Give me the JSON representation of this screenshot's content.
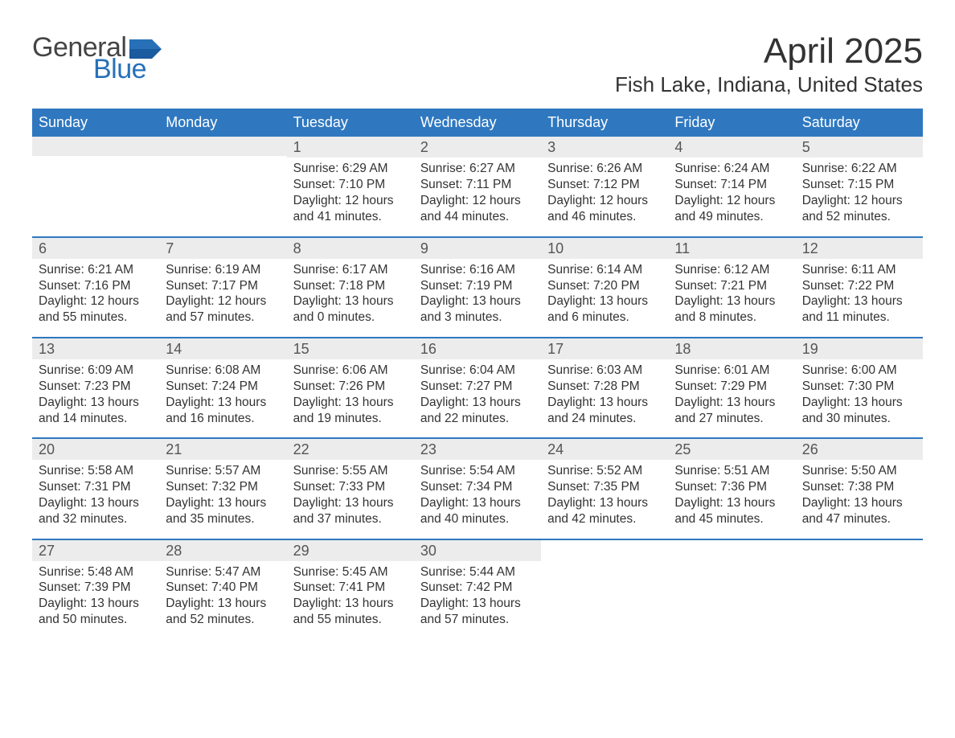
{
  "logo": {
    "general": "General",
    "blue": "Blue",
    "flag_color": "#2770b8"
  },
  "title": "April 2025",
  "location": "Fish Lake, Indiana, United States",
  "colors": {
    "header_bg": "#2f78c0",
    "header_text": "#ffffff",
    "daynum_bg": "#ececec",
    "text": "#333333",
    "week_divider": "#2f78c0",
    "logo_blue": "#2770b8"
  },
  "day_names": [
    "Sunday",
    "Monday",
    "Tuesday",
    "Wednesday",
    "Thursday",
    "Friday",
    "Saturday"
  ],
  "weeks": [
    [
      {
        "blank": true
      },
      {
        "blank": true
      },
      {
        "num": "1",
        "sunrise": "6:29 AM",
        "sunset": "7:10 PM",
        "daylight": "12 hours and 41 minutes."
      },
      {
        "num": "2",
        "sunrise": "6:27 AM",
        "sunset": "7:11 PM",
        "daylight": "12 hours and 44 minutes."
      },
      {
        "num": "3",
        "sunrise": "6:26 AM",
        "sunset": "7:12 PM",
        "daylight": "12 hours and 46 minutes."
      },
      {
        "num": "4",
        "sunrise": "6:24 AM",
        "sunset": "7:14 PM",
        "daylight": "12 hours and 49 minutes."
      },
      {
        "num": "5",
        "sunrise": "6:22 AM",
        "sunset": "7:15 PM",
        "daylight": "12 hours and 52 minutes."
      }
    ],
    [
      {
        "num": "6",
        "sunrise": "6:21 AM",
        "sunset": "7:16 PM",
        "daylight": "12 hours and 55 minutes."
      },
      {
        "num": "7",
        "sunrise": "6:19 AM",
        "sunset": "7:17 PM",
        "daylight": "12 hours and 57 minutes."
      },
      {
        "num": "8",
        "sunrise": "6:17 AM",
        "sunset": "7:18 PM",
        "daylight": "13 hours and 0 minutes."
      },
      {
        "num": "9",
        "sunrise": "6:16 AM",
        "sunset": "7:19 PM",
        "daylight": "13 hours and 3 minutes."
      },
      {
        "num": "10",
        "sunrise": "6:14 AM",
        "sunset": "7:20 PM",
        "daylight": "13 hours and 6 minutes."
      },
      {
        "num": "11",
        "sunrise": "6:12 AM",
        "sunset": "7:21 PM",
        "daylight": "13 hours and 8 minutes."
      },
      {
        "num": "12",
        "sunrise": "6:11 AM",
        "sunset": "7:22 PM",
        "daylight": "13 hours and 11 minutes."
      }
    ],
    [
      {
        "num": "13",
        "sunrise": "6:09 AM",
        "sunset": "7:23 PM",
        "daylight": "13 hours and 14 minutes."
      },
      {
        "num": "14",
        "sunrise": "6:08 AM",
        "sunset": "7:24 PM",
        "daylight": "13 hours and 16 minutes."
      },
      {
        "num": "15",
        "sunrise": "6:06 AM",
        "sunset": "7:26 PM",
        "daylight": "13 hours and 19 minutes."
      },
      {
        "num": "16",
        "sunrise": "6:04 AM",
        "sunset": "7:27 PM",
        "daylight": "13 hours and 22 minutes."
      },
      {
        "num": "17",
        "sunrise": "6:03 AM",
        "sunset": "7:28 PM",
        "daylight": "13 hours and 24 minutes."
      },
      {
        "num": "18",
        "sunrise": "6:01 AM",
        "sunset": "7:29 PM",
        "daylight": "13 hours and 27 minutes."
      },
      {
        "num": "19",
        "sunrise": "6:00 AM",
        "sunset": "7:30 PM",
        "daylight": "13 hours and 30 minutes."
      }
    ],
    [
      {
        "num": "20",
        "sunrise": "5:58 AM",
        "sunset": "7:31 PM",
        "daylight": "13 hours and 32 minutes."
      },
      {
        "num": "21",
        "sunrise": "5:57 AM",
        "sunset": "7:32 PM",
        "daylight": "13 hours and 35 minutes."
      },
      {
        "num": "22",
        "sunrise": "5:55 AM",
        "sunset": "7:33 PM",
        "daylight": "13 hours and 37 minutes."
      },
      {
        "num": "23",
        "sunrise": "5:54 AM",
        "sunset": "7:34 PM",
        "daylight": "13 hours and 40 minutes."
      },
      {
        "num": "24",
        "sunrise": "5:52 AM",
        "sunset": "7:35 PM",
        "daylight": "13 hours and 42 minutes."
      },
      {
        "num": "25",
        "sunrise": "5:51 AM",
        "sunset": "7:36 PM",
        "daylight": "13 hours and 45 minutes."
      },
      {
        "num": "26",
        "sunrise": "5:50 AM",
        "sunset": "7:38 PM",
        "daylight": "13 hours and 47 minutes."
      }
    ],
    [
      {
        "num": "27",
        "sunrise": "5:48 AM",
        "sunset": "7:39 PM",
        "daylight": "13 hours and 50 minutes."
      },
      {
        "num": "28",
        "sunrise": "5:47 AM",
        "sunset": "7:40 PM",
        "daylight": "13 hours and 52 minutes."
      },
      {
        "num": "29",
        "sunrise": "5:45 AM",
        "sunset": "7:41 PM",
        "daylight": "13 hours and 55 minutes."
      },
      {
        "num": "30",
        "sunrise": "5:44 AM",
        "sunset": "7:42 PM",
        "daylight": "13 hours and 57 minutes."
      },
      {
        "trailing": true
      },
      {
        "trailing": true
      },
      {
        "trailing": true
      }
    ]
  ],
  "labels": {
    "sunrise": "Sunrise: ",
    "sunset": "Sunset: ",
    "daylight": "Daylight: "
  }
}
